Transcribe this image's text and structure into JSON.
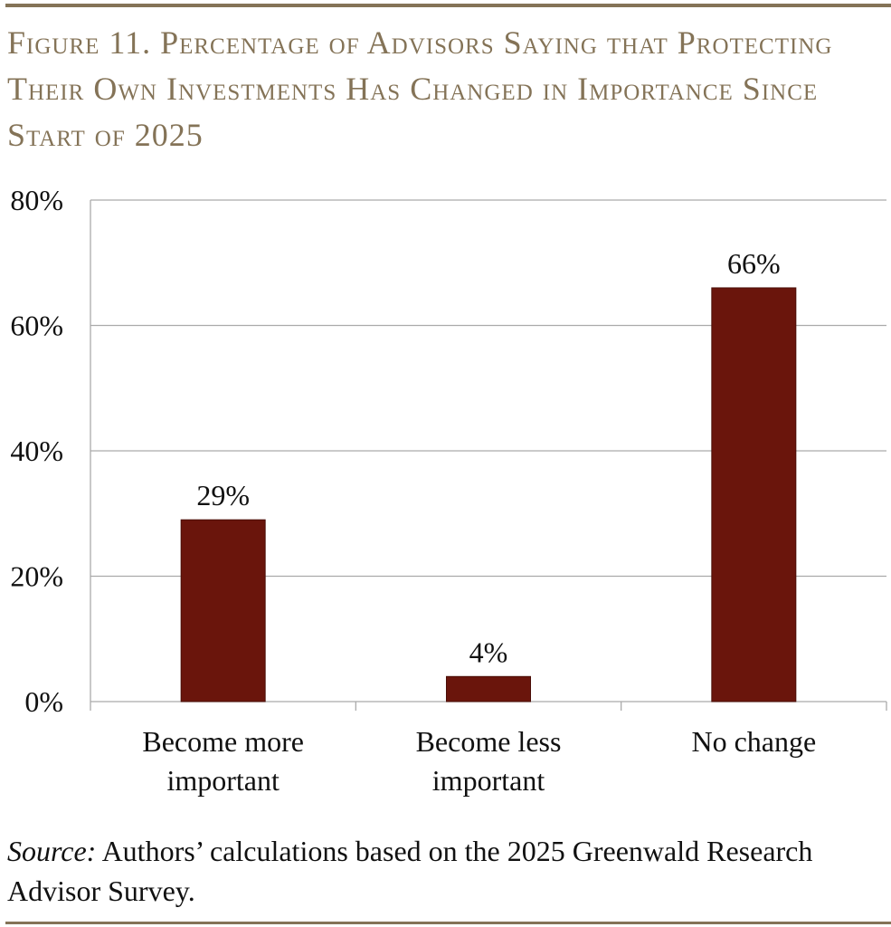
{
  "title": "Figure 11. Percentage of Advisors Saying that Protecting Their Own Investments Has Changed in Importance Since Start of 2025",
  "chart_data": {
    "type": "bar",
    "title": "Figure 11. Percentage of Advisors Saying that Protecting Their Own Investments Has Changed in Importance Since Start of 2025",
    "categories": [
      [
        "Become more",
        "important"
      ],
      [
        "Become less",
        "important"
      ],
      [
        "No change"
      ]
    ],
    "values": [
      29,
      4,
      66
    ],
    "data_labels": [
      "29%",
      "4%",
      "66%"
    ],
    "ylim": [
      0,
      80
    ],
    "yticks": [
      0,
      20,
      40,
      60,
      80
    ],
    "ytick_labels": [
      "0%",
      "20%",
      "40%",
      "60%",
      "80%"
    ],
    "xlabel": "",
    "ylabel": "",
    "grid": true,
    "bar_color": "#6a150c"
  },
  "source": {
    "label": "Source:",
    "text": " Authors’ calculations based on the 2025 Greenwald Research Advisor Survey."
  }
}
